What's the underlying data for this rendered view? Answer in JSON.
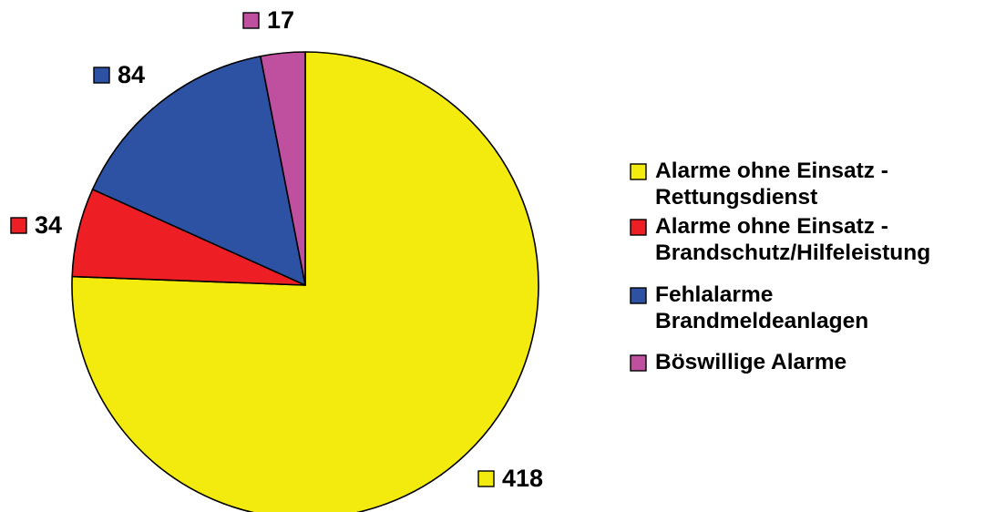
{
  "chart_data": {
    "type": "pie",
    "categories": [
      "Alarme ohne Einsatz - Rettungsdienst",
      "Alarme ohne Einsatz - Brandschutz/Hilfeleistung",
      "Fehlalarme Brandmeldeanlagen",
      "Böswillige Alarme"
    ],
    "values": [
      418,
      34,
      84,
      17
    ],
    "data_labels": [
      "418",
      "34",
      "84",
      "17"
    ],
    "colors": [
      "#f4eb0e",
      "#ed1f24",
      "#2e52a3",
      "#bf4f9f"
    ],
    "legend": {
      "placement": "right",
      "entries": [
        [
          "Alarme ohne Einsatz -",
          "Rettungsdienst"
        ],
        [
          "Alarme ohne Einsatz -",
          "Brandschutz/Hilfeleistung"
        ],
        [
          "Fehlalarme",
          "Brandmeldeanlagen"
        ],
        [
          "Böswillige Alarme"
        ]
      ]
    },
    "start_angle": "12 o'clock",
    "direction": "clockwise"
  }
}
